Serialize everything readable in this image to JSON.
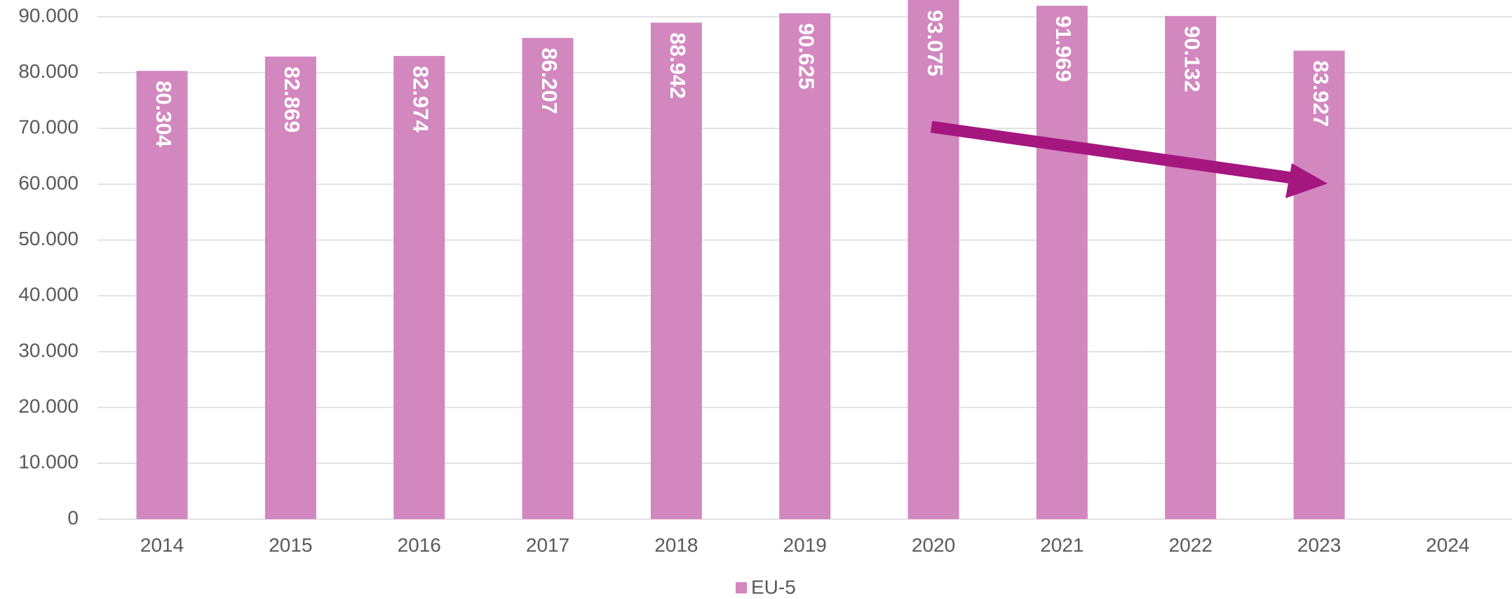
{
  "chart_data": {
    "type": "bar",
    "categories": [
      "2014",
      "2015",
      "2016",
      "2017",
      "2018",
      "2019",
      "2020",
      "2021",
      "2022",
      "2023",
      "2024"
    ],
    "series": [
      {
        "name": "EU-5",
        "color": "#d287bf",
        "values": [
          80304,
          82869,
          82974,
          86207,
          88942,
          90625,
          93075,
          91969,
          90132,
          83927,
          null
        ],
        "value_labels": [
          "80.304",
          "82.869",
          "82.974",
          "86.207",
          "88.942",
          "90.625",
          "93.075",
          "91.969",
          "90.132",
          "83.927",
          null
        ]
      }
    ],
    "ylim": [
      0,
      93000
    ],
    "yticks": [
      {
        "value": 0,
        "label": "0"
      },
      {
        "value": 10000,
        "label": "10.000"
      },
      {
        "value": 20000,
        "label": "20.000"
      },
      {
        "value": 30000,
        "label": "30.000"
      },
      {
        "value": 40000,
        "label": "40.000"
      },
      {
        "value": 50000,
        "label": "50.000"
      },
      {
        "value": 60000,
        "label": "60.000"
      },
      {
        "value": 70000,
        "label": "70.000"
      },
      {
        "value": 80000,
        "label": "80.000"
      },
      {
        "value": 90000,
        "label": "90.000"
      }
    ],
    "grid": true,
    "legend": "bottom"
  }
}
